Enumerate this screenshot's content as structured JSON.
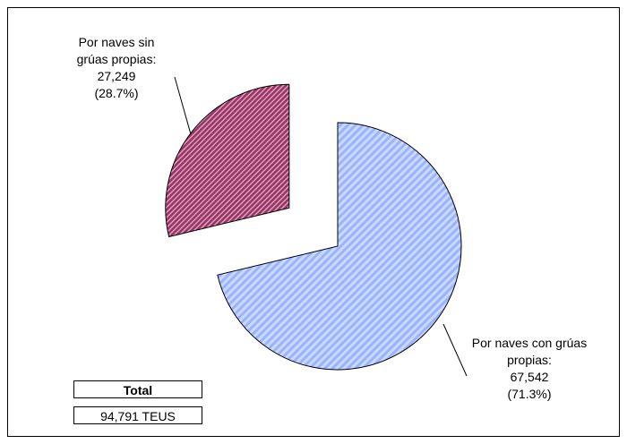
{
  "chart_data": {
    "type": "pie",
    "categories": [
      "Por naves con grúas propias:",
      "Por naves sin grúas propias:"
    ],
    "values": [
      67542,
      27249
    ],
    "value_labels": [
      "67,542",
      "27,249"
    ],
    "percent_labels": [
      "(71.3%)",
      "(28.7%)"
    ],
    "colors": [
      "#99b3ff",
      "#993366"
    ],
    "exploded": [
      false,
      true
    ],
    "total_title": "Total",
    "total_text": "94,791 TEUS"
  }
}
